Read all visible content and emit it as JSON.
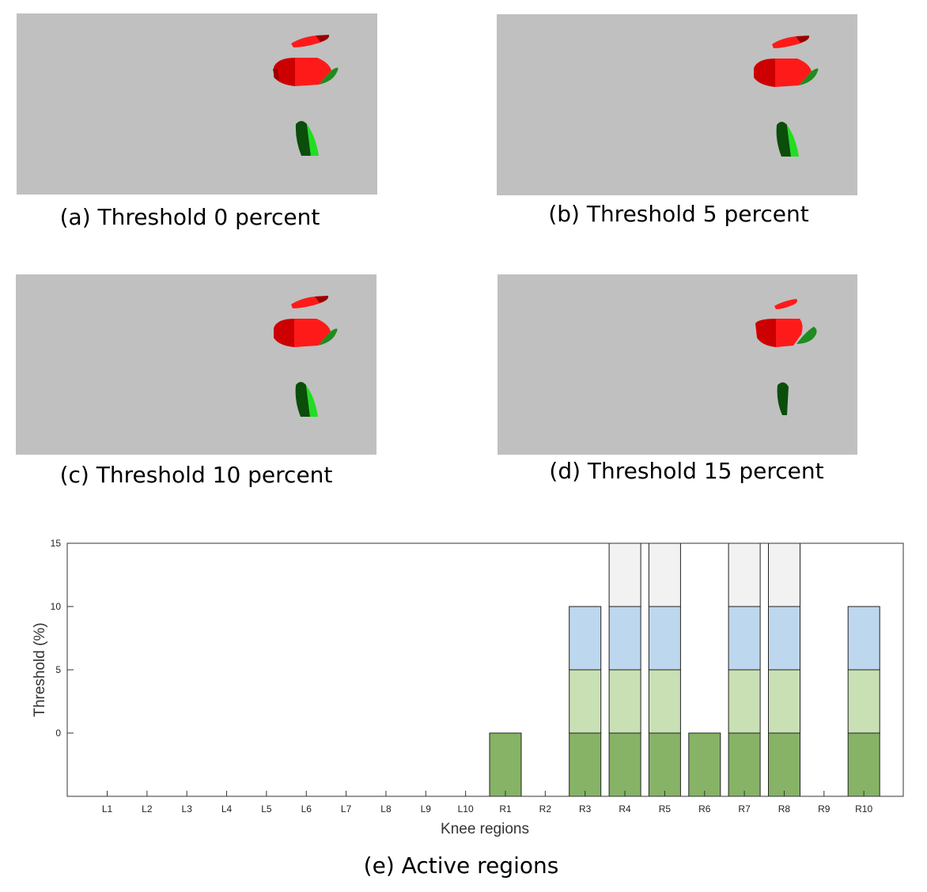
{
  "captions": {
    "a": "(a) Threshold 0 percent",
    "b": "(b) Threshold 5 percent",
    "c": "(c) Threshold 10 percent",
    "d": "(d) Threshold 15 percent",
    "e": "(e) Active regions"
  },
  "colors": {
    "background_panel": "#c0c0c0",
    "red": "#ff1a1a",
    "dark_red": "#cc0000",
    "maroon": "#990000",
    "green": "#1f8c1f",
    "dark_green": "#0b4d0b",
    "light_green": "#22dd22"
  },
  "chart_data": {
    "type": "bar",
    "stacked": true,
    "xlabel": "Knee regions",
    "ylabel": "Threshold (%)",
    "categories": [
      "L1",
      "L2",
      "L3",
      "L4",
      "L5",
      "L6",
      "L7",
      "L8",
      "L9",
      "L10",
      "R1",
      "R2",
      "R3",
      "R4",
      "R5",
      "R6",
      "R7",
      "R8",
      "R9",
      "R10"
    ],
    "y_ticks": [
      "0",
      "5",
      "10",
      "15"
    ],
    "ylim": [
      -5,
      15
    ],
    "grid": false,
    "active_max_threshold": [
      null,
      null,
      null,
      null,
      null,
      null,
      null,
      null,
      null,
      null,
      0,
      null,
      10,
      15,
      15,
      0,
      15,
      15,
      null,
      10
    ],
    "series": [
      {
        "threshold": 0,
        "color": "#86b366",
        "values": [
          0,
          0,
          0,
          0,
          0,
          0,
          0,
          0,
          0,
          0,
          1,
          0,
          1,
          1,
          1,
          1,
          1,
          1,
          0,
          1
        ]
      },
      {
        "threshold": 5,
        "color": "#c8e0b4",
        "values": [
          0,
          0,
          0,
          0,
          0,
          0,
          0,
          0,
          0,
          0,
          0,
          0,
          1,
          1,
          1,
          0,
          1,
          1,
          0,
          1
        ]
      },
      {
        "threshold": 10,
        "color": "#bdd7ee",
        "values": [
          0,
          0,
          0,
          0,
          0,
          0,
          0,
          0,
          0,
          0,
          0,
          0,
          1,
          1,
          1,
          0,
          1,
          1,
          0,
          1
        ]
      },
      {
        "threshold": 15,
        "color": "#f2f2f2",
        "values": [
          0,
          0,
          0,
          0,
          0,
          0,
          0,
          0,
          0,
          0,
          0,
          0,
          0,
          1,
          1,
          0,
          1,
          1,
          0,
          0
        ]
      }
    ]
  }
}
